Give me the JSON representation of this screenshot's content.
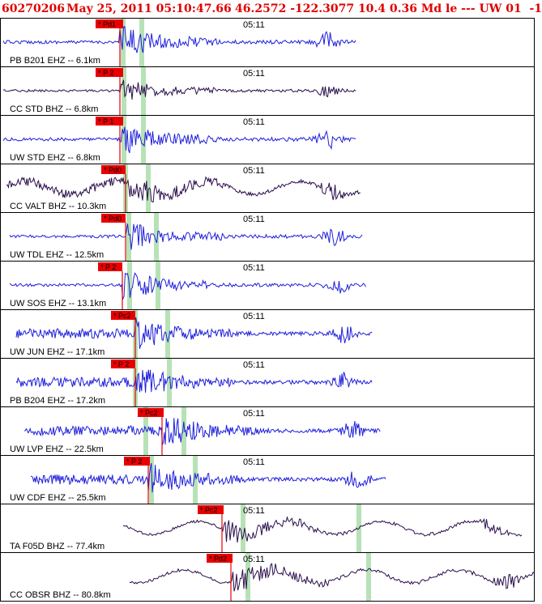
{
  "header": {
    "event_id": "60270206",
    "datetime": "May 25, 2011 05:10:47.66",
    "coords": "46.2572 -122.3077 10.4 0.36 Md le --- UW 01  -1"
  },
  "time_mark": "05:11",
  "colors": {
    "header_red": "#e00000",
    "trace_blue": "#1f1fdc",
    "trace_dark": "#2a0e4c",
    "pick_red": "#e80000",
    "window_green": "#b7e2b7"
  },
  "panels": [
    {
      "label": "PB B201 EHZ -- 6.1km",
      "pick": "Pd1",
      "trace": "blue"
    },
    {
      "label": "CC STD BHZ -- 6.8km",
      "pick": "P 2",
      "trace": "dark"
    },
    {
      "label": "UW STD EHZ -- 6.8km",
      "pick": "P 1",
      "trace": "blue"
    },
    {
      "label": "CC VALT BHZ -- 10.3km",
      "pick": "Pd0",
      "trace": "dark"
    },
    {
      "label": "UW TDL EHZ -- 12.5km",
      "pick": "Pd0",
      "trace": "blue"
    },
    {
      "label": "UW SOS EHZ -- 13.1km",
      "pick": "P 2",
      "trace": "blue"
    },
    {
      "label": "UW JUN EHZ -- 17.1km",
      "pick": "Pc2",
      "trace": "blue"
    },
    {
      "label": "PB B204 EHZ -- 17.2km",
      "pick": "P 2",
      "trace": "blue"
    },
    {
      "label": "UW LVP EHZ -- 22.5km",
      "pick": "Pc2",
      "trace": "blue"
    },
    {
      "label": "UW CDF EHZ -- 25.5km",
      "pick": "P 2",
      "trace": "blue"
    },
    {
      "label": "TA F05D BHZ -- 77.4km",
      "pick": "Pc2",
      "trace": "dark"
    },
    {
      "label": "CC OBSR BHZ -- 80.8km",
      "pick": "Pd2",
      "trace": "dark"
    }
  ]
}
